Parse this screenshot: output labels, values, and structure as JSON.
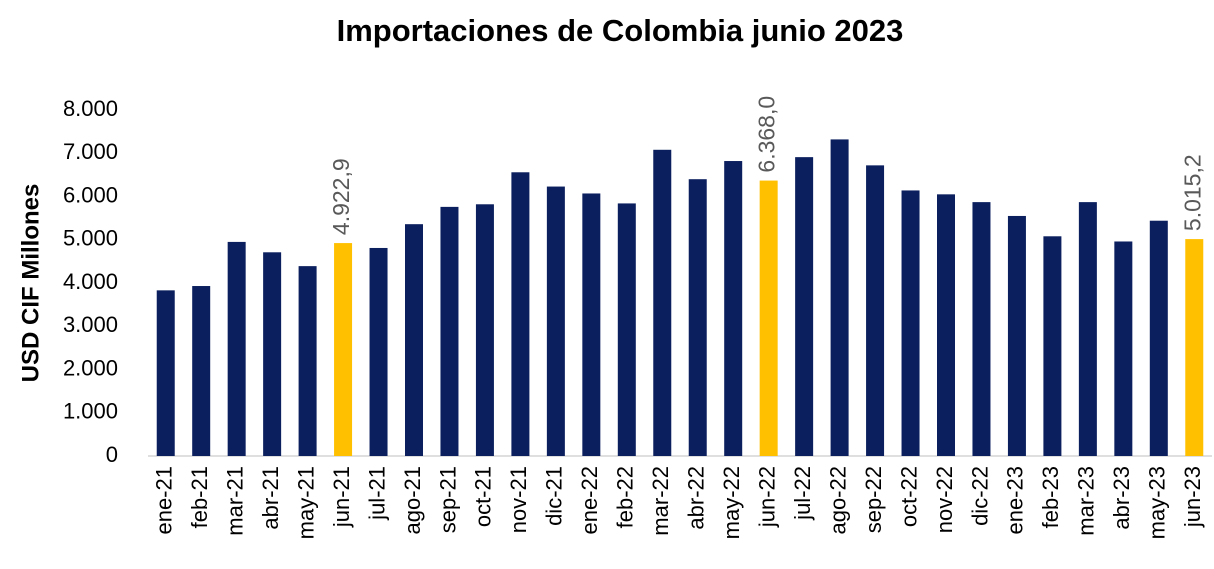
{
  "chart_data": {
    "type": "bar",
    "title": "Importaciones de Colombia junio 2023",
    "ylabel": "USD CIF Millones",
    "categories": [
      "ene-21",
      "feb-21",
      "mar-21",
      "abr-21",
      "may-21",
      "jun-21",
      "jul-21",
      "ago-21",
      "sep-21",
      "oct-21",
      "nov-21",
      "dic-21",
      "ene-22",
      "feb-22",
      "mar-22",
      "abr-22",
      "may-22",
      "jun-22",
      "jul-22",
      "ago-22",
      "sep-22",
      "oct-22",
      "nov-22",
      "dic-22",
      "ene-23",
      "feb-23",
      "mar-23",
      "abr-23",
      "may-23",
      "jun-23"
    ],
    "values": [
      3830,
      3930,
      4950,
      4710,
      4390,
      4922.9,
      4810,
      5360,
      5760,
      5820,
      6560,
      6230,
      6070,
      5840,
      7080,
      6400,
      6820,
      6368.0,
      6910,
      7320,
      6720,
      6140,
      6050,
      5870,
      5550,
      5080,
      5870,
      4960,
      5440,
      5015.2
    ],
    "value_labels": [
      null,
      null,
      null,
      null,
      null,
      "4.922,9",
      null,
      null,
      null,
      null,
      null,
      null,
      null,
      null,
      null,
      null,
      null,
      "6.368,0",
      null,
      null,
      null,
      null,
      null,
      null,
      null,
      null,
      null,
      null,
      null,
      "5.015,2"
    ],
    "colors": [
      "#0b1f5e",
      "#0b1f5e",
      "#0b1f5e",
      "#0b1f5e",
      "#0b1f5e",
      "#ffc000",
      "#0b1f5e",
      "#0b1f5e",
      "#0b1f5e",
      "#0b1f5e",
      "#0b1f5e",
      "#0b1f5e",
      "#0b1f5e",
      "#0b1f5e",
      "#0b1f5e",
      "#0b1f5e",
      "#0b1f5e",
      "#ffc000",
      "#0b1f5e",
      "#0b1f5e",
      "#0b1f5e",
      "#0b1f5e",
      "#0b1f5e",
      "#0b1f5e",
      "#0b1f5e",
      "#0b1f5e",
      "#0b1f5e",
      "#0b1f5e",
      "#0b1f5e",
      "#ffc000"
    ],
    "ylim": [
      0,
      8000
    ],
    "yticks": [
      0,
      {
        "value": 1000,
        "label": "1.000"
      },
      {
        "value": 2000,
        "label": "2.000"
      },
      {
        "value": 3000,
        "label": "3.000"
      },
      {
        "value": 4000,
        "label": "4.000"
      },
      {
        "value": 5000,
        "label": "5.000"
      },
      {
        "value": 6000,
        "label": "6.000"
      },
      {
        "value": 7000,
        "label": "7.000"
      },
      {
        "value": 8000,
        "label": "8.000"
      }
    ],
    "grid": false
  }
}
